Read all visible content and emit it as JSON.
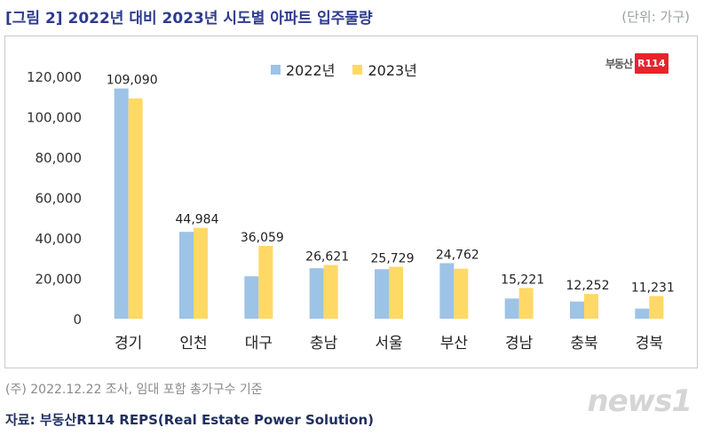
{
  "header": {
    "title": "[그림 2] 2022년 대비 2023년 시도별 아파트 입주물량",
    "unit": "(단위: 가구)"
  },
  "logo": {
    "text": "부동산",
    "badge": "R114"
  },
  "colors": {
    "s2022": "#9dc3e6",
    "s2023": "#ffd966",
    "title": "#2e3b8f"
  },
  "chart_data": {
    "type": "bar",
    "categories": [
      "경기",
      "인천",
      "대구",
      "충남",
      "서울",
      "부산",
      "경남",
      "충북",
      "경북"
    ],
    "series": [
      {
        "name": "2022년",
        "values": [
          114000,
          43000,
          21000,
          25000,
          24500,
          27500,
          10000,
          8500,
          5000
        ]
      },
      {
        "name": "2023년",
        "values": [
          109090,
          44984,
          36059,
          26621,
          25729,
          24762,
          15221,
          12252,
          11231
        ]
      }
    ],
    "data_labels": [
      "109,090",
      "44,984",
      "36,059",
      "26,621",
      "25,729",
      "24,762",
      "15,221",
      "12,252",
      "11,231"
    ],
    "yticks": [
      "0",
      "20,000",
      "40,000",
      "60,000",
      "80,000",
      "100,000",
      "120,000"
    ],
    "ylim": [
      0,
      120000
    ],
    "legend": "top-center",
    "grid": false
  },
  "footer": {
    "note": "(주) 2022.12.22 조사, 임대 포함 총가구수 기준",
    "source": "자료: 부동산R114 REPS(Real Estate Power Solution)",
    "watermark": "news1"
  }
}
